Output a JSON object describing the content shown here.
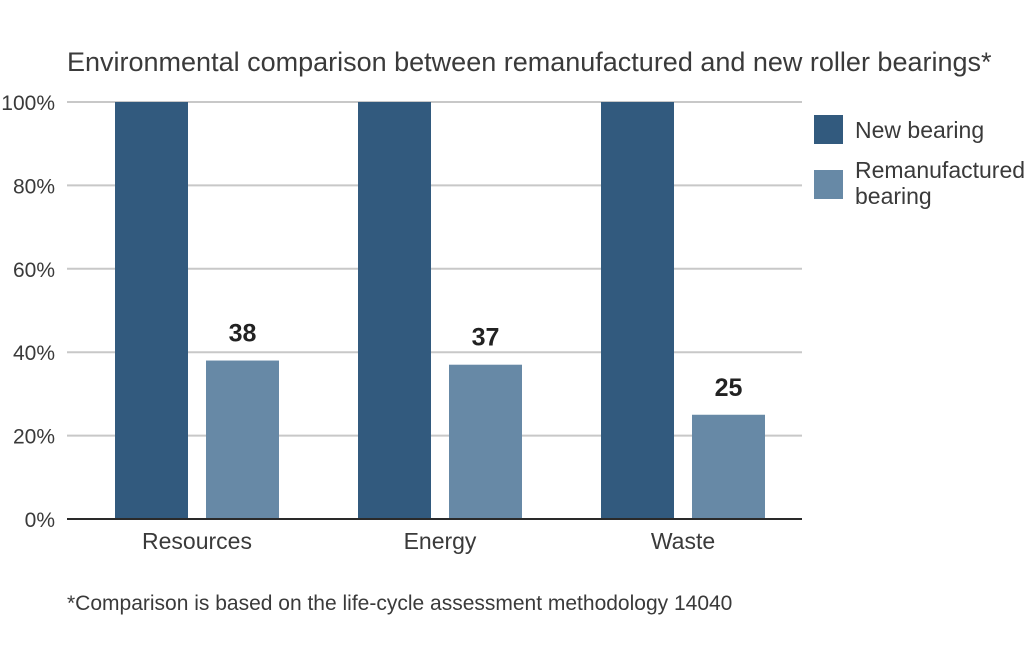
{
  "chart_data": {
    "type": "bar",
    "title": "Environmental comparison between remanufactured and new roller bearings*",
    "categories": [
      "Resources",
      "Energy",
      "Waste"
    ],
    "series": [
      {
        "name": "New bearing",
        "values": [
          100,
          100,
          100
        ],
        "color": "#325a7e",
        "show_labels": false
      },
      {
        "name": "Remanufactured bearing",
        "legend_lines": [
          "Remanufactured",
          "bearing"
        ],
        "values": [
          38,
          37,
          25
        ],
        "color": "#6789a6",
        "show_labels": true
      }
    ],
    "ylim": [
      0,
      100
    ],
    "yticks": [
      0,
      20,
      40,
      60,
      80,
      100
    ],
    "ytick_labels": [
      "0%",
      "20%",
      "40%",
      "60%",
      "80%",
      "100%"
    ],
    "grid": true,
    "legend_position": "right",
    "footnote": "*Comparison is based on the life-cycle assessment methodology 14040",
    "colors": {
      "grid": "#c8c8c8",
      "axis": "#2a2a2a"
    }
  }
}
